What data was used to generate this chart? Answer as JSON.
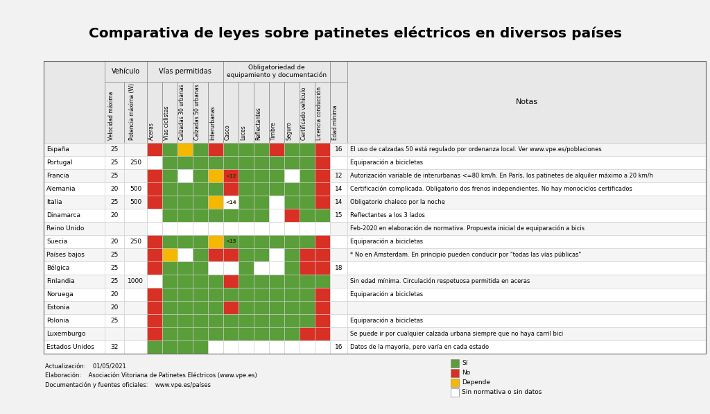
{
  "title": "Comparativa de leyes sobre patinetes eléctricos en diversos países",
  "countries": [
    "España",
    "Portugal",
    "Francia",
    "Alemania",
    "Italia",
    "Dinamarca",
    "Reino Unido",
    "Suecia",
    "Países bajos",
    "Bélgica",
    "Finlandia",
    "Noruega",
    "Estonia",
    "Polonia",
    "Luxemburgo",
    "Estados Unidos"
  ],
  "speed": [
    "25",
    "25",
    "25",
    "20",
    "25",
    "20",
    "",
    "20",
    "25",
    "25",
    "25",
    "20",
    "20",
    "25",
    "",
    "32"
  ],
  "power": [
    "",
    "250",
    "",
    "500",
    "500",
    "",
    "",
    "250",
    "",
    "",
    "1000",
    "",
    "",
    "",
    "",
    ""
  ],
  "age": [
    "16",
    "",
    "12",
    "14",
    "14",
    "15",
    "",
    "",
    "",
    "18",
    "",
    "",
    "",
    "",
    "",
    "16"
  ],
  "notes": [
    "El uso de calzadas 50 está regulado por ordenanza local. Ver www.vpe.es/poblaciones",
    "Equiparación a bicicletas",
    "Autorización variable de interurbanas <=80 km/h. En París, los patinetes de alquiler máximo a 20 km/h",
    "Certificación complicada. Obligatorio dos frenos independientes. No hay monociclos certificados",
    "Obligatorio chaleco por la noche",
    "Reflectantes a los 3 lados",
    "Feb-2020 en elaboración de normativa. Propuesta inicial de equiparación a bicis",
    "Equiparación a bicicletas",
    "* No en Amsterdam. En principio pueden conducir por \"todas las vías públicas\"",
    "",
    "Sin edad mínima. Circulación respetuosa permitida en aceras",
    "Equiparación a bicicletas",
    "",
    "Equiparación a bicicletas",
    "Se puede ir por cualquier calzada urbana siempre que no haya carril bici",
    "Datos de la mayoría, pero varía en cada estado"
  ],
  "casco_text": [
    "",
    "",
    "<12",
    "",
    "<14",
    "",
    "",
    "<15",
    "",
    "",
    "",
    "",
    "",
    "",
    "",
    ""
  ],
  "table_data": [
    [
      "R",
      "G",
      "Y",
      "G",
      "R",
      "G",
      "G",
      "G",
      "R",
      "G",
      "G",
      "R"
    ],
    [
      "W",
      "G",
      "G",
      "G",
      "G",
      "G",
      "G",
      "G",
      "G",
      "G",
      "G",
      "R"
    ],
    [
      "R",
      "G",
      "W",
      "G",
      "Y",
      "R",
      "G",
      "G",
      "G",
      "W",
      "G",
      "R"
    ],
    [
      "R",
      "G",
      "G",
      "G",
      "G",
      "R",
      "G",
      "G",
      "G",
      "G",
      "G",
      "R"
    ],
    [
      "R",
      "G",
      "G",
      "G",
      "Y",
      "W",
      "G",
      "G",
      "W",
      "G",
      "G",
      "R"
    ],
    [
      "W",
      "G",
      "G",
      "G",
      "G",
      "G",
      "G",
      "G",
      "W",
      "R",
      "G",
      "G"
    ],
    [
      "W",
      "W",
      "W",
      "W",
      "W",
      "W",
      "W",
      "W",
      "W",
      "W",
      "W",
      "W"
    ],
    [
      "R",
      "G",
      "G",
      "G",
      "Y",
      "G",
      "G",
      "G",
      "G",
      "G",
      "G",
      "R"
    ],
    [
      "R",
      "Y",
      "W",
      "G",
      "R",
      "R",
      "G",
      "G",
      "W",
      "G",
      "R",
      "R"
    ],
    [
      "R",
      "G",
      "G",
      "G",
      "W",
      "W",
      "G",
      "W",
      "W",
      "G",
      "R",
      "R"
    ],
    [
      "W",
      "G",
      "G",
      "G",
      "G",
      "R",
      "G",
      "G",
      "G",
      "G",
      "G",
      "G"
    ],
    [
      "R",
      "G",
      "G",
      "G",
      "G",
      "G",
      "G",
      "G",
      "G",
      "G",
      "G",
      "R"
    ],
    [
      "R",
      "G",
      "G",
      "G",
      "G",
      "R",
      "G",
      "G",
      "G",
      "G",
      "G",
      "R"
    ],
    [
      "R",
      "G",
      "G",
      "G",
      "G",
      "G",
      "G",
      "G",
      "G",
      "G",
      "G",
      "R"
    ],
    [
      "R",
      "G",
      "G",
      "G",
      "G",
      "G",
      "G",
      "G",
      "G",
      "G",
      "R",
      "R"
    ],
    [
      "G",
      "G",
      "G",
      "G",
      "W",
      "W",
      "W",
      "W",
      "W",
      "W",
      "W",
      "W"
    ]
  ],
  "footer_lines": [
    "Actualización:    01/05/2021",
    "Elaboración:    Asociación Vitoriana de Patinetes Eléctricos (www.vpe.es)",
    "Documentación y fuentes oficiales:    www.vpe.es/países"
  ],
  "legend": [
    {
      "label": "Sí",
      "color": "#5a9e3a"
    },
    {
      "label": "No",
      "color": "#d93025"
    },
    {
      "label": "Depende",
      "color": "#f5b800"
    },
    {
      "label": "Sin normativa o sin datos",
      "color": "#ffffff"
    }
  ],
  "sub_headers": [
    "Velocidad máxima",
    "Potencia máxima (W)",
    "Aceras",
    "Vías ciclistas",
    "Calzadas 30 urbanas",
    "Calzadas 50 urbanas",
    "Interurbanas",
    "Casco",
    "Luces",
    "Reflectantes",
    "Timbre",
    "Seguro",
    "Certificado vehículo",
    "Licencia conducción",
    "Edad mínima"
  ],
  "bg_color": "#f2f2f2"
}
